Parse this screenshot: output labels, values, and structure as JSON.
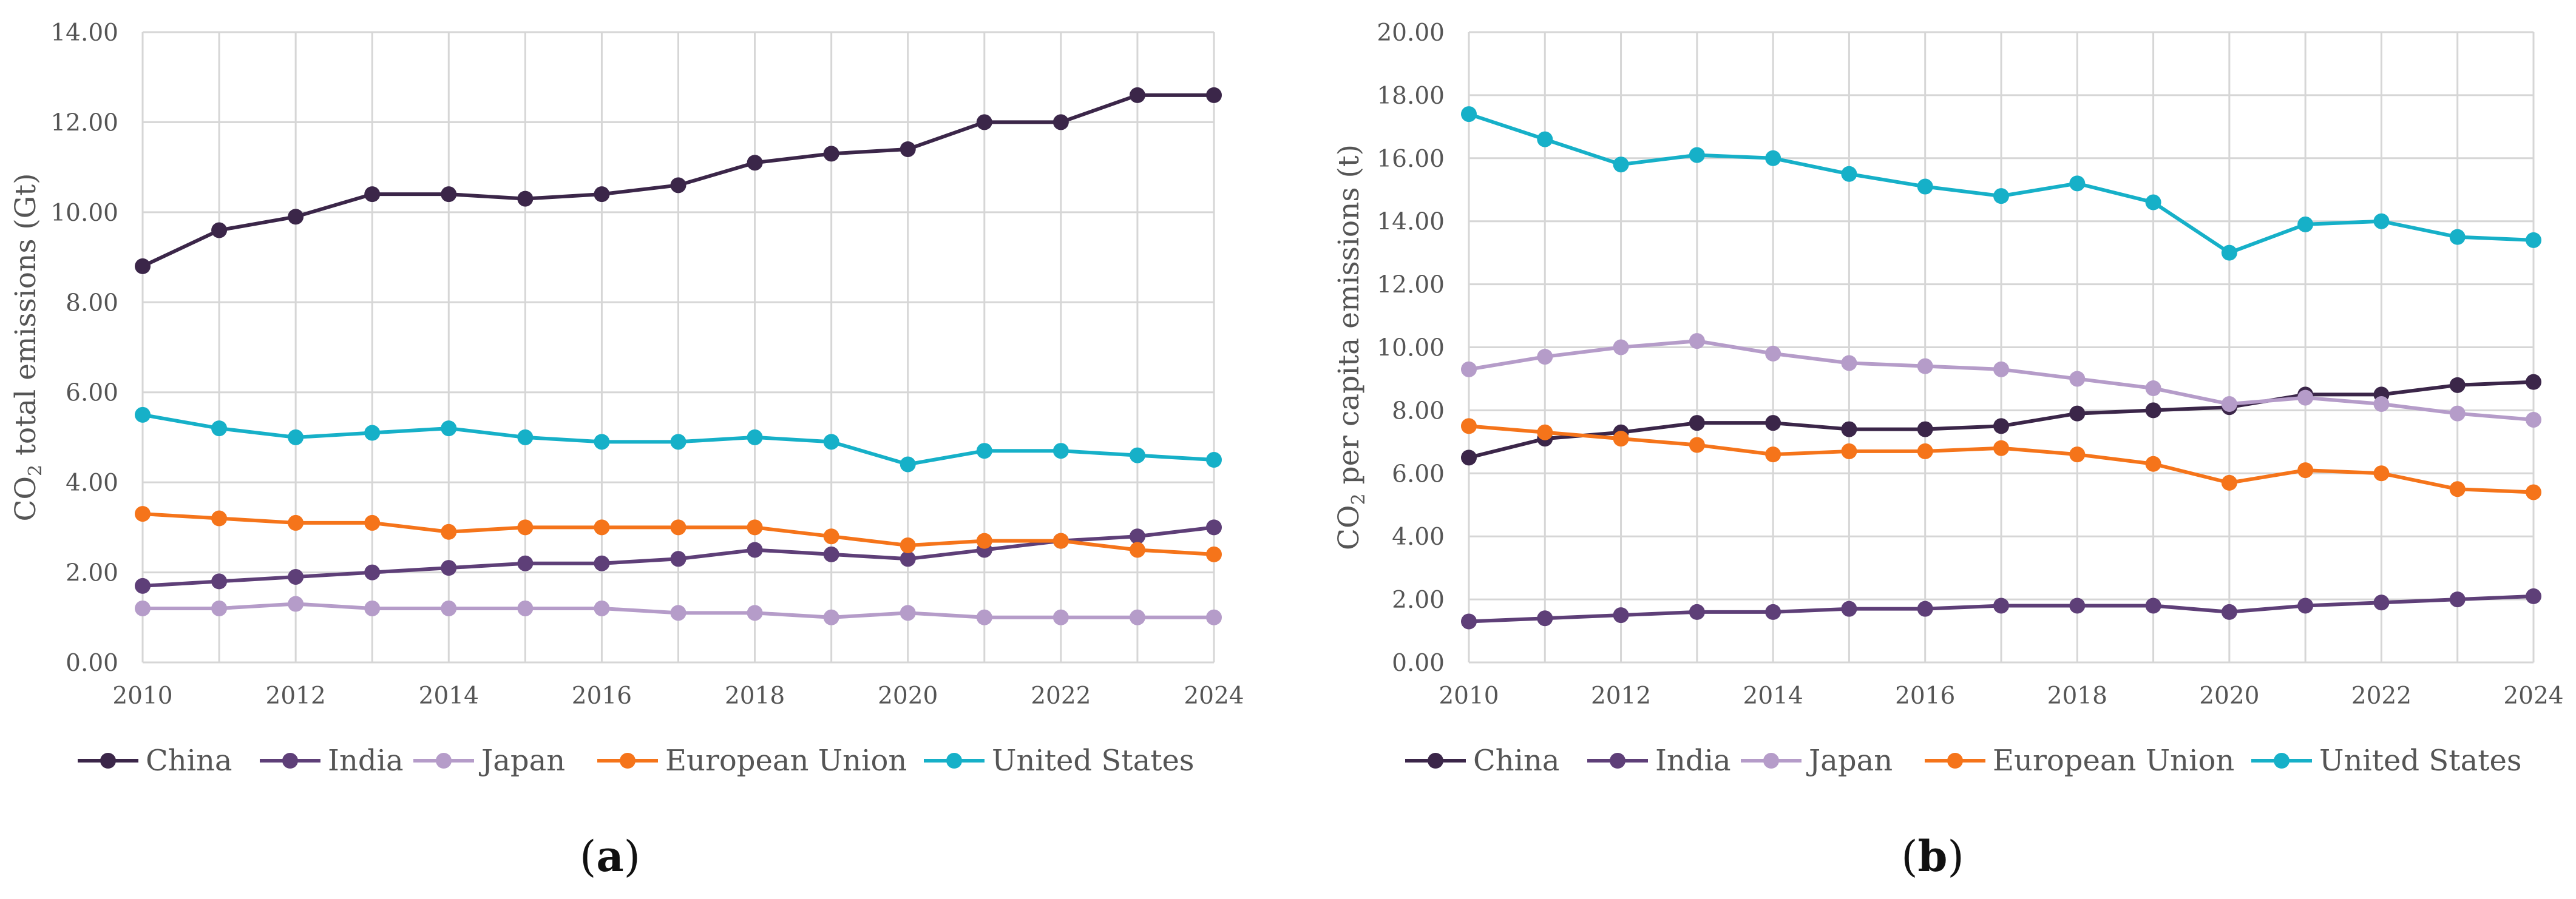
{
  "chart_data": [
    {
      "type": "line",
      "panel_label_open": "(",
      "panel_label_letter": "a",
      "panel_label_close": ")",
      "ylabel_prefix": "CO",
      "ylabel_sub": "2",
      "ylabel_suffix": " total emissions (Gt)",
      "xlabel": "",
      "x": [
        2010,
        2011,
        2012,
        2013,
        2014,
        2015,
        2016,
        2017,
        2018,
        2019,
        2020,
        2021,
        2022,
        2023,
        2024
      ],
      "xticks": [
        "2010",
        "2012",
        "2014",
        "2016",
        "2018",
        "2020",
        "2022",
        "2024"
      ],
      "yticks": [
        "0.00",
        "2.00",
        "4.00",
        "6.00",
        "8.00",
        "10.00",
        "12.00",
        "14.00"
      ],
      "ylim": [
        0,
        14
      ],
      "xlim": [
        2010,
        2024
      ],
      "grid": true,
      "legend_position": "bottom",
      "series": [
        {
          "name": "China",
          "color": "#3b2649",
          "values": [
            8.8,
            9.6,
            9.9,
            10.4,
            10.4,
            10.3,
            10.4,
            10.6,
            11.1,
            11.3,
            11.4,
            12.0,
            12.0,
            12.6,
            12.6
          ]
        },
        {
          "name": "India",
          "color": "#5e3f78",
          "values": [
            1.7,
            1.8,
            1.9,
            2.0,
            2.1,
            2.2,
            2.2,
            2.3,
            2.5,
            2.4,
            2.3,
            2.5,
            2.7,
            2.8,
            3.0
          ]
        },
        {
          "name": "Japan",
          "color": "#b59cc9",
          "values": [
            1.2,
            1.2,
            1.3,
            1.2,
            1.2,
            1.2,
            1.2,
            1.1,
            1.1,
            1.0,
            1.1,
            1.0,
            1.0,
            1.0,
            1.0
          ]
        },
        {
          "name": "European Union",
          "color": "#f5741a",
          "values": [
            3.3,
            3.2,
            3.1,
            3.1,
            2.9,
            3.0,
            3.0,
            3.0,
            3.0,
            2.8,
            2.6,
            2.7,
            2.7,
            2.5,
            2.4
          ]
        },
        {
          "name": "United States",
          "color": "#16b0c8",
          "values": [
            5.5,
            5.2,
            5.0,
            5.1,
            5.2,
            5.0,
            4.9,
            4.9,
            5.0,
            4.9,
            4.4,
            4.7,
            4.7,
            4.6,
            4.5
          ]
        }
      ]
    },
    {
      "type": "line",
      "panel_label_open": "(",
      "panel_label_letter": "b",
      "panel_label_close": ")",
      "ylabel_prefix": "CO",
      "ylabel_sub": "2",
      "ylabel_suffix": " per capita emissions (t)",
      "xlabel": "",
      "x": [
        2010,
        2011,
        2012,
        2013,
        2014,
        2015,
        2016,
        2017,
        2018,
        2019,
        2020,
        2021,
        2022,
        2023,
        2024
      ],
      "xticks": [
        "2010",
        "2012",
        "2014",
        "2016",
        "2018",
        "2020",
        "2022",
        "2024"
      ],
      "yticks": [
        "0.00",
        "2.00",
        "4.00",
        "6.00",
        "8.00",
        "10.00",
        "12.00",
        "14.00",
        "16.00",
        "18.00",
        "20.00"
      ],
      "ylim": [
        0,
        20
      ],
      "xlim": [
        2010,
        2024
      ],
      "grid": true,
      "legend_position": "bottom",
      "series": [
        {
          "name": "China",
          "color": "#3b2649",
          "values": [
            6.5,
            7.1,
            7.3,
            7.6,
            7.6,
            7.4,
            7.4,
            7.5,
            7.9,
            8.0,
            8.1,
            8.5,
            8.5,
            8.8,
            8.9
          ]
        },
        {
          "name": "India",
          "color": "#5e3f78",
          "values": [
            1.3,
            1.4,
            1.5,
            1.6,
            1.6,
            1.7,
            1.7,
            1.8,
            1.8,
            1.8,
            1.6,
            1.8,
            1.9,
            2.0,
            2.1
          ]
        },
        {
          "name": "Japan",
          "color": "#b59cc9",
          "values": [
            9.3,
            9.7,
            10.0,
            10.2,
            9.8,
            9.5,
            9.4,
            9.3,
            9.0,
            8.7,
            8.2,
            8.4,
            8.2,
            7.9,
            7.7
          ]
        },
        {
          "name": "European Union",
          "color": "#f5741a",
          "values": [
            7.5,
            7.3,
            7.1,
            6.9,
            6.6,
            6.7,
            6.7,
            6.8,
            6.6,
            6.3,
            5.7,
            6.1,
            6.0,
            5.5,
            5.4
          ]
        },
        {
          "name": "United States",
          "color": "#16b0c8",
          "values": [
            17.4,
            16.6,
            15.8,
            16.1,
            16.0,
            15.5,
            15.1,
            14.8,
            15.2,
            14.6,
            13.0,
            13.9,
            14.0,
            13.5,
            13.4
          ]
        }
      ]
    }
  ]
}
